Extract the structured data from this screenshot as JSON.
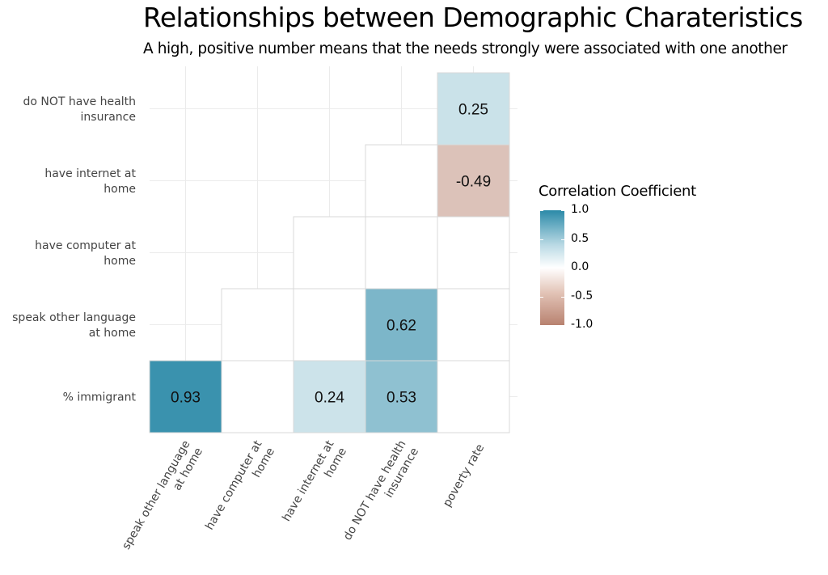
{
  "header": {
    "title": "Relationships between Demographic Charateristics",
    "subtitle": "A high, positive number means that the needs strongly were associated with one another"
  },
  "legend": {
    "title": "Correlation Coefficient",
    "ticks": [
      "1.0",
      "0.5",
      "0.0",
      "-0.5",
      "-1.0"
    ],
    "tick_values": [
      1.0,
      0.5,
      0.0,
      -0.5,
      -1.0
    ],
    "colors": {
      "high": "#2b8aa8",
      "mid": "#ffffff",
      "low": "#b88270"
    }
  },
  "chart_data": {
    "type": "heatmap",
    "title": "Relationships between Demographic Charateristics",
    "subtitle": "A high, positive number means that the needs strongly were associated with one another",
    "x_categories": [
      "speak other language at home",
      "have computer at home",
      "have internet at home",
      "do NOT have health insurance",
      "poverty rate"
    ],
    "x_tick_lines": [
      [
        "speak other language",
        "at home"
      ],
      [
        "have computer at",
        "home"
      ],
      [
        "have internet at",
        "home"
      ],
      [
        "do NOT have health",
        "insurance"
      ],
      [
        "poverty rate"
      ]
    ],
    "y_categories": [
      "% immigrant",
      "speak other language at home",
      "have computer at home",
      "have internet at home",
      "do NOT have health insurance"
    ],
    "y_tick_lines": [
      [
        "% immigrant"
      ],
      [
        "speak other language",
        "at home"
      ],
      [
        "have computer at",
        "home"
      ],
      [
        "have internet at",
        "home"
      ],
      [
        "do NOT have health",
        "insurance"
      ]
    ],
    "color_range": [
      -1.0,
      1.0
    ],
    "cells": [
      {
        "x": "speak other language at home",
        "y": "% immigrant",
        "value": 0.93,
        "label": "0.93"
      },
      {
        "x": "have computer at home",
        "y": "% immigrant",
        "value": null,
        "label": ""
      },
      {
        "x": "have internet at home",
        "y": "% immigrant",
        "value": 0.24,
        "label": "0.24"
      },
      {
        "x": "do NOT have health insurance",
        "y": "% immigrant",
        "value": 0.53,
        "label": "0.53"
      },
      {
        "x": "poverty rate",
        "y": "% immigrant",
        "value": null,
        "label": ""
      },
      {
        "x": "have computer at home",
        "y": "speak other language at home",
        "value": null,
        "label": ""
      },
      {
        "x": "have internet at home",
        "y": "speak other language at home",
        "value": null,
        "label": ""
      },
      {
        "x": "do NOT have health insurance",
        "y": "speak other language at home",
        "value": 0.62,
        "label": "0.62"
      },
      {
        "x": "poverty rate",
        "y": "speak other language at home",
        "value": null,
        "label": ""
      },
      {
        "x": "have internet at home",
        "y": "have computer at home",
        "value": null,
        "label": ""
      },
      {
        "x": "do NOT have health insurance",
        "y": "have computer at home",
        "value": null,
        "label": ""
      },
      {
        "x": "poverty rate",
        "y": "have computer at home",
        "value": null,
        "label": ""
      },
      {
        "x": "do NOT have health insurance",
        "y": "have internet at home",
        "value": null,
        "label": ""
      },
      {
        "x": "poverty rate",
        "y": "have internet at home",
        "value": -0.49,
        "label": "-0.49"
      },
      {
        "x": "poverty rate",
        "y": "do NOT have health insurance",
        "value": 0.25,
        "label": "0.25"
      }
    ],
    "grid": true,
    "legend_position": "right"
  }
}
